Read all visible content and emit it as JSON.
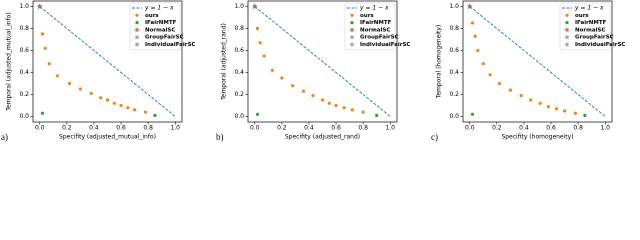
{
  "chart_data": [
    {
      "type": "scatter",
      "label": "a)",
      "xlabel": "Specifity (adjusted_mutual_info)",
      "ylabel": "Temporal (adjusted_mutual_info)",
      "xlim": [
        -0.05,
        1.05
      ],
      "ylim": [
        -0.05,
        1.05
      ],
      "xticks": [
        {
          "value": 0,
          "label": "0.0"
        },
        0.2,
        0.4,
        0.6,
        0.8,
        {
          "value": 1,
          "label": "1.0"
        }
      ],
      "yticks": [
        {
          "value": 0,
          "label": "0.0"
        },
        0.2,
        0.4,
        0.6,
        0.8,
        {
          "value": 1,
          "label": "1.0"
        }
      ],
      "legend": "upper right",
      "series": [
        {
          "name": "y = 1 − x",
          "color": "#1f77b4",
          "marker": "line",
          "x": [
            0,
            1
          ],
          "values": [
            1,
            0
          ]
        },
        {
          "name": "ours",
          "color": "#ff7f0e",
          "marker": "circle",
          "x": [
            0,
            0.02,
            0.04,
            0.07,
            0.13,
            0.22,
            0.3,
            0.38,
            0.45,
            0.5,
            0.55,
            0.6,
            0.65,
            0.7,
            0.78
          ],
          "values": [
            1,
            0.75,
            0.62,
            0.48,
            0.37,
            0.3,
            0.25,
            0.21,
            0.17,
            0.15,
            0.12,
            0.1,
            0.08,
            0.06,
            0.04
          ]
        },
        {
          "name": "IFairNMTF",
          "color": "#2ca02c",
          "marker": "circle",
          "x": [
            0.02,
            0.85
          ],
          "values": [
            0.03,
            0.01
          ]
        },
        {
          "name": "NormalSC",
          "color": "#d62728",
          "marker": "star",
          "x": [
            0
          ],
          "values": [
            1
          ]
        },
        {
          "name": "GroupFairSC",
          "color": "#9467bd",
          "marker": "star",
          "x": [
            0
          ],
          "values": [
            1
          ]
        },
        {
          "name": "IndividualFairSC",
          "color": "#7f7f7f",
          "marker": "star",
          "x": [
            0
          ],
          "values": [
            1
          ]
        }
      ]
    },
    {
      "type": "scatter",
      "label": "b)",
      "xlabel": "Specifity (adjusted_rand)",
      "ylabel": "Temporal (adjusted_rand)",
      "xlim": [
        -0.05,
        1.05
      ],
      "ylim": [
        -0.05,
        1.05
      ],
      "xticks": [
        {
          "value": 0,
          "label": "0.0"
        },
        0.2,
        0.4,
        0.6,
        0.8,
        {
          "value": 1,
          "label": "1.0"
        }
      ],
      "yticks": [
        {
          "value": 0,
          "label": "0.0"
        },
        0.2,
        0.4,
        0.6,
        0.8,
        {
          "value": 1,
          "label": "1.0"
        }
      ],
      "legend": "upper right",
      "series": [
        {
          "name": "y = 1 − x",
          "color": "#1f77b4",
          "marker": "line",
          "x": [
            0,
            1
          ],
          "values": [
            1,
            0
          ]
        },
        {
          "name": "ours",
          "color": "#ff7f0e",
          "marker": "circle",
          "x": [
            0,
            0.02,
            0.04,
            0.07,
            0.13,
            0.2,
            0.28,
            0.36,
            0.43,
            0.5,
            0.55,
            0.6,
            0.66,
            0.72,
            0.8
          ],
          "values": [
            1,
            0.8,
            0.67,
            0.55,
            0.42,
            0.35,
            0.28,
            0.23,
            0.19,
            0.15,
            0.12,
            0.1,
            0.08,
            0.06,
            0.04
          ]
        },
        {
          "name": "IFairNMTF",
          "color": "#2ca02c",
          "marker": "circle",
          "x": [
            0.02,
            0.9
          ],
          "values": [
            0.02,
            0.01
          ]
        },
        {
          "name": "NormalSC",
          "color": "#d62728",
          "marker": "star",
          "x": [
            0
          ],
          "values": [
            1
          ]
        },
        {
          "name": "GroupFairSC",
          "color": "#9467bd",
          "marker": "star",
          "x": [
            0
          ],
          "values": [
            1
          ]
        },
        {
          "name": "IndividualFairSC",
          "color": "#7f7f7f",
          "marker": "star",
          "x": [
            0
          ],
          "values": [
            1
          ]
        }
      ]
    },
    {
      "type": "scatter",
      "label": "c)",
      "xlabel": "Specifity (homogeneity)",
      "ylabel": "Temporal (homogeneity)",
      "xlim": [
        -0.05,
        1.05
      ],
      "ylim": [
        -0.05,
        1.05
      ],
      "xticks": [
        {
          "value": 0,
          "label": "0.0"
        },
        0.2,
        0.4,
        0.6,
        0.8,
        {
          "value": 1,
          "label": "1.0"
        }
      ],
      "yticks": [
        {
          "value": 0,
          "label": "0.0"
        },
        0.2,
        0.4,
        0.6,
        0.8,
        {
          "value": 1,
          "label": "1.0"
        }
      ],
      "legend": "upper right",
      "series": [
        {
          "name": "y = 1 − x",
          "color": "#1f77b4",
          "marker": "line",
          "x": [
            0,
            1
          ],
          "values": [
            1,
            0
          ]
        },
        {
          "name": "ours",
          "color": "#ff7f0e",
          "marker": "circle",
          "x": [
            0,
            0.02,
            0.04,
            0.06,
            0.1,
            0.15,
            0.22,
            0.3,
            0.38,
            0.45,
            0.52,
            0.58,
            0.64,
            0.7,
            0.78
          ],
          "values": [
            1,
            0.85,
            0.73,
            0.6,
            0.48,
            0.38,
            0.3,
            0.24,
            0.19,
            0.15,
            0.12,
            0.09,
            0.07,
            0.05,
            0.03
          ]
        },
        {
          "name": "IFairNMTF",
          "color": "#2ca02c",
          "marker": "circle",
          "x": [
            0.02,
            0.85
          ],
          "values": [
            0.02,
            0.01
          ]
        },
        {
          "name": "NormalSC",
          "color": "#d62728",
          "marker": "star",
          "x": [
            0
          ],
          "values": [
            1
          ]
        },
        {
          "name": "GroupFairSC",
          "color": "#9467bd",
          "marker": "star",
          "x": [
            0
          ],
          "values": [
            1
          ]
        },
        {
          "name": "IndividualFairSC",
          "color": "#7f7f7f",
          "marker": "star",
          "x": [
            0
          ],
          "values": [
            1
          ]
        }
      ]
    }
  ]
}
